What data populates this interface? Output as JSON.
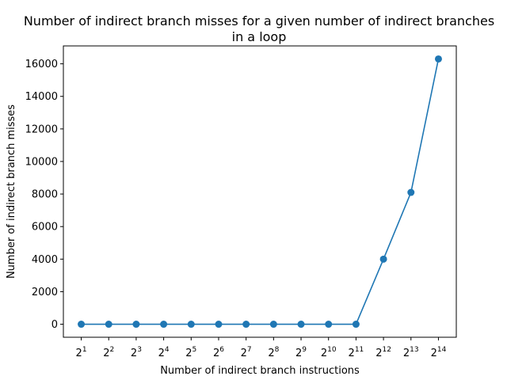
{
  "chart_data": {
    "type": "line",
    "title_line1": "Number of indirect branch misses for a given number of indirect branches",
    "title_line2": "in a loop",
    "xlabel": "Number of indirect branch instructions",
    "ylabel": "Number of indirect branch misses",
    "x_scale": "log2",
    "x_tick_base": "2",
    "x_tick_exponents": [
      "1",
      "2",
      "3",
      "4",
      "5",
      "6",
      "7",
      "8",
      "9",
      "10",
      "11",
      "12",
      "13",
      "14"
    ],
    "x": [
      2,
      4,
      8,
      16,
      32,
      64,
      128,
      256,
      512,
      1024,
      2048,
      4096,
      8192,
      16384
    ],
    "y": [
      0,
      0,
      0,
      0,
      0,
      0,
      0,
      0,
      0,
      0,
      0,
      4000,
      8100,
      16300
    ],
    "ylim": [
      -800,
      17100
    ],
    "y_ticks": [
      0,
      2000,
      4000,
      6000,
      8000,
      10000,
      12000,
      14000,
      16000
    ],
    "y_tick_labels": [
      "0",
      "2000",
      "4000",
      "6000",
      "8000",
      "10000",
      "12000",
      "14000",
      "16000"
    ],
    "grid": false,
    "legend": "none",
    "series_color": "#1f77b4",
    "marker": "circle"
  }
}
